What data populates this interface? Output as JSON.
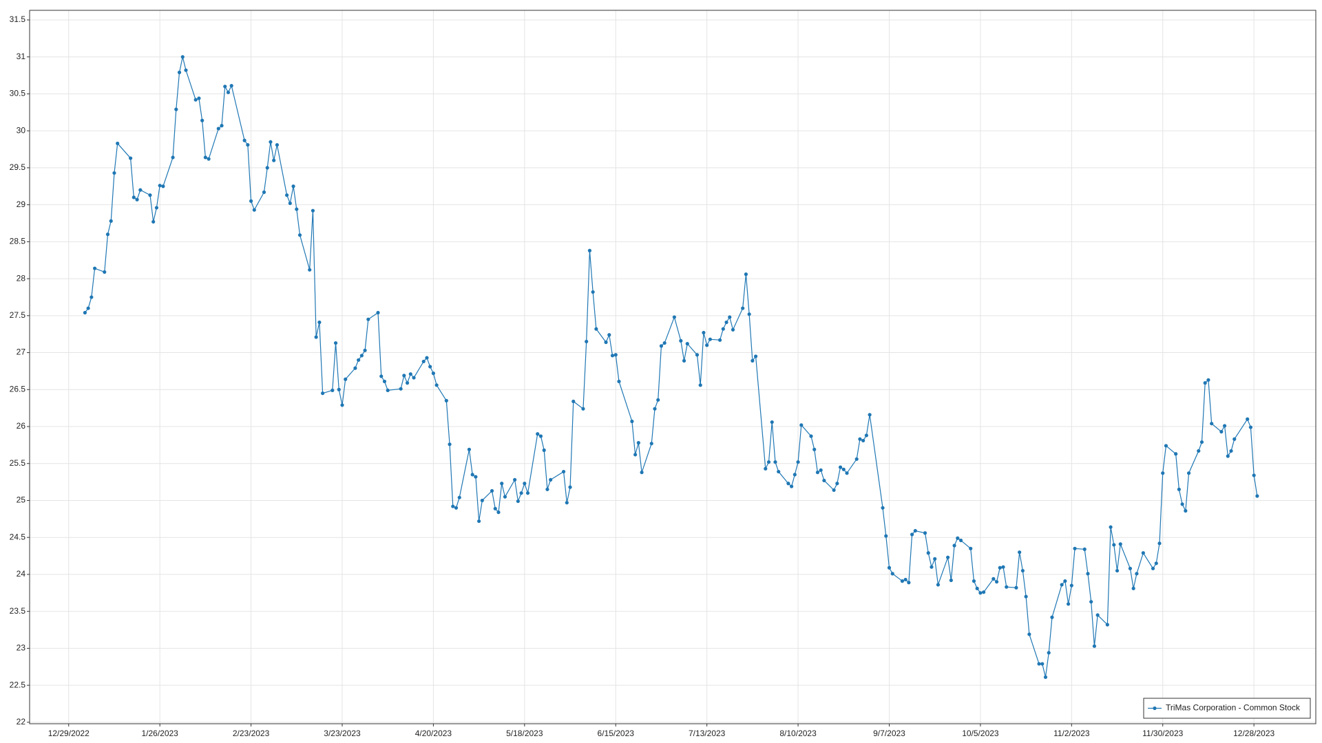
{
  "chart_data": {
    "type": "line",
    "x": [
      "1/3/2023",
      "1/4/2023",
      "1/5/2023",
      "1/6/2023",
      "1/9/2023",
      "1/10/2023",
      "1/11/2023",
      "1/12/2023",
      "1/13/2023",
      "1/17/2023",
      "1/18/2023",
      "1/19/2023",
      "1/20/2023",
      "1/23/2023",
      "1/24/2023",
      "1/25/2023",
      "1/26/2023",
      "1/27/2023",
      "1/30/2023",
      "1/31/2023",
      "2/1/2023",
      "2/2/2023",
      "2/3/2023",
      "2/6/2023",
      "2/7/2023",
      "2/8/2023",
      "2/9/2023",
      "2/10/2023",
      "2/13/2023",
      "2/14/2023",
      "2/15/2023",
      "2/16/2023",
      "2/17/2023",
      "2/21/2023",
      "2/22/2023",
      "2/23/2023",
      "2/24/2023",
      "2/27/2023",
      "2/28/2023",
      "3/1/2023",
      "3/2/2023",
      "3/3/2023",
      "3/6/2023",
      "3/7/2023",
      "3/8/2023",
      "3/9/2023",
      "3/10/2023",
      "3/13/2023",
      "3/14/2023",
      "3/15/2023",
      "3/16/2023",
      "3/17/2023",
      "3/20/2023",
      "3/21/2023",
      "3/22/2023",
      "3/23/2023",
      "3/24/2023",
      "3/27/2023",
      "3/28/2023",
      "3/29/2023",
      "3/30/2023",
      "3/31/2023",
      "4/3/2023",
      "4/4/2023",
      "4/5/2023",
      "4/6/2023",
      "4/10/2023",
      "4/11/2023",
      "4/12/2023",
      "4/13/2023",
      "4/14/2023",
      "4/17/2023",
      "4/18/2023",
      "4/19/2023",
      "4/20/2023",
      "4/21/2023",
      "4/24/2023",
      "4/25/2023",
      "4/26/2023",
      "4/27/2023",
      "4/28/2023",
      "5/1/2023",
      "5/2/2023",
      "5/3/2023",
      "5/4/2023",
      "5/5/2023",
      "5/8/2023",
      "5/9/2023",
      "5/10/2023",
      "5/11/2023",
      "5/12/2023",
      "5/15/2023",
      "5/16/2023",
      "5/17/2023",
      "5/18/2023",
      "5/19/2023",
      "5/22/2023",
      "5/23/2023",
      "5/24/2023",
      "5/25/2023",
      "5/26/2023",
      "5/30/2023",
      "5/31/2023",
      "6/1/2023",
      "6/2/2023",
      "6/5/2023",
      "6/6/2023",
      "6/7/2023",
      "6/8/2023",
      "6/9/2023",
      "6/12/2023",
      "6/13/2023",
      "6/14/2023",
      "6/15/2023",
      "6/16/2023",
      "6/20/2023",
      "6/21/2023",
      "6/22/2023",
      "6/23/2023",
      "6/26/2023",
      "6/27/2023",
      "6/28/2023",
      "6/29/2023",
      "6/30/2023",
      "7/3/2023",
      "7/5/2023",
      "7/6/2023",
      "7/7/2023",
      "7/10/2023",
      "7/11/2023",
      "7/12/2023",
      "7/13/2023",
      "7/14/2023",
      "7/17/2023",
      "7/18/2023",
      "7/19/2023",
      "7/20/2023",
      "7/21/2023",
      "7/24/2023",
      "7/25/2023",
      "7/26/2023",
      "7/27/2023",
      "7/28/2023",
      "7/31/2023",
      "8/1/2023",
      "8/2/2023",
      "8/3/2023",
      "8/4/2023",
      "8/7/2023",
      "8/8/2023",
      "8/9/2023",
      "8/10/2023",
      "8/11/2023",
      "8/14/2023",
      "8/15/2023",
      "8/16/2023",
      "8/17/2023",
      "8/18/2023",
      "8/21/2023",
      "8/22/2023",
      "8/23/2023",
      "8/24/2023",
      "8/25/2023",
      "8/28/2023",
      "8/29/2023",
      "8/30/2023",
      "8/31/2023",
      "9/1/2023",
      "9/5/2023",
      "9/6/2023",
      "9/7/2023",
      "9/8/2023",
      "9/11/2023",
      "9/12/2023",
      "9/13/2023",
      "9/14/2023",
      "9/15/2023",
      "9/18/2023",
      "9/19/2023",
      "9/20/2023",
      "9/21/2023",
      "9/22/2023",
      "9/25/2023",
      "9/26/2023",
      "9/27/2023",
      "9/28/2023",
      "9/29/2023",
      "10/2/2023",
      "10/3/2023",
      "10/4/2023",
      "10/5/2023",
      "10/6/2023",
      "10/9/2023",
      "10/10/2023",
      "10/11/2023",
      "10/12/2023",
      "10/13/2023",
      "10/16/2023",
      "10/17/2023",
      "10/18/2023",
      "10/19/2023",
      "10/20/2023",
      "10/23/2023",
      "10/24/2023",
      "10/25/2023",
      "10/26/2023",
      "10/27/2023",
      "10/30/2023",
      "10/31/2023",
      "11/1/2023",
      "11/2/2023",
      "11/3/2023",
      "11/6/2023",
      "11/7/2023",
      "11/8/2023",
      "11/9/2023",
      "11/10/2023",
      "11/13/2023",
      "11/14/2023",
      "11/15/2023",
      "11/16/2023",
      "11/17/2023",
      "11/20/2023",
      "11/21/2023",
      "11/22/2023",
      "11/24/2023",
      "11/27/2023",
      "11/28/2023",
      "11/29/2023",
      "11/30/2023",
      "12/1/2023",
      "12/4/2023",
      "12/5/2023",
      "12/6/2023",
      "12/7/2023",
      "12/8/2023",
      "12/11/2023",
      "12/12/2023",
      "12/13/2023",
      "12/14/2023",
      "12/15/2023",
      "12/18/2023",
      "12/19/2023",
      "12/20/2023",
      "12/21/2023",
      "12/22/2023",
      "12/26/2023",
      "12/27/2023",
      "12/28/2023",
      "12/29/2023"
    ],
    "series": [
      {
        "name": "TriMas Corporation - Common Stock",
        "color": "#1f77b4",
        "values": [
          27.54,
          27.6,
          27.75,
          28.14,
          28.09,
          28.6,
          28.78,
          29.43,
          29.83,
          29.63,
          29.1,
          29.07,
          29.2,
          29.13,
          28.77,
          28.96,
          29.26,
          29.25,
          29.64,
          30.29,
          30.79,
          31.0,
          30.82,
          30.42,
          30.44,
          30.14,
          29.64,
          29.62,
          30.03,
          30.07,
          30.6,
          30.52,
          30.61,
          29.87,
          29.81,
          29.05,
          28.93,
          29.17,
          29.5,
          29.85,
          29.6,
          29.81,
          29.13,
          29.02,
          29.25,
          28.94,
          28.59,
          28.12,
          28.92,
          27.21,
          27.41,
          26.45,
          26.49,
          27.13,
          26.5,
          26.29,
          26.64,
          26.79,
          26.9,
          26.96,
          27.03,
          27.45,
          27.54,
          26.68,
          26.61,
          26.49,
          26.51,
          26.69,
          26.59,
          26.71,
          26.66,
          26.88,
          26.93,
          26.81,
          26.72,
          26.56,
          26.35,
          25.76,
          24.92,
          24.9,
          25.04,
          25.69,
          25.35,
          25.32,
          24.72,
          25.0,
          25.13,
          24.89,
          24.84,
          25.23,
          25.05,
          25.28,
          24.99,
          25.1,
          25.23,
          25.1,
          25.9,
          25.87,
          25.68,
          25.15,
          25.28,
          25.39,
          24.97,
          25.18,
          26.34,
          26.24,
          27.15,
          28.38,
          27.82,
          27.32,
          27.14,
          27.24,
          26.96,
          26.97,
          26.61,
          26.07,
          25.62,
          25.78,
          25.38,
          25.77,
          26.24,
          26.36,
          27.09,
          27.13,
          27.48,
          27.16,
          26.89,
          27.12,
          26.97,
          26.56,
          27.27,
          27.1,
          27.18,
          27.17,
          27.32,
          27.41,
          27.48,
          27.31,
          27.6,
          28.06,
          27.52,
          26.89,
          26.95,
          25.43,
          25.52,
          26.06,
          25.52,
          25.39,
          25.23,
          25.19,
          25.35,
          25.52,
          26.02,
          25.87,
          25.69,
          25.38,
          25.41,
          25.27,
          25.14,
          25.23,
          25.45,
          25.42,
          25.37,
          25.56,
          25.83,
          25.81,
          25.88,
          26.16,
          24.9,
          24.52,
          24.09,
          24.01,
          23.91,
          23.93,
          23.89,
          24.54,
          24.59,
          24.56,
          24.29,
          24.1,
          24.21,
          23.86,
          24.23,
          23.92,
          24.39,
          24.49,
          24.46,
          24.35,
          23.91,
          23.81,
          23.75,
          23.76,
          23.94,
          23.9,
          24.09,
          24.1,
          23.83,
          23.82,
          24.3,
          24.05,
          23.7,
          23.19,
          22.79,
          22.79,
          22.61,
          22.94,
          23.42,
          23.86,
          23.91,
          23.6,
          23.85,
          24.35,
          24.34,
          24.01,
          23.63,
          23.03,
          23.45,
          23.32,
          24.64,
          24.4,
          24.05,
          24.41,
          24.08,
          23.81,
          24.01,
          24.29,
          24.08,
          24.15,
          24.42,
          25.37,
          25.74,
          25.63,
          25.15,
          24.95,
          24.86,
          25.37,
          25.67,
          25.79,
          26.59,
          26.63,
          26.04,
          25.93,
          26.01,
          25.6,
          25.67,
          25.83,
          26.1,
          25.99,
          25.34,
          25.06
        ]
      }
    ],
    "xlim": [
      "12/17/2022",
      "1/16/2024"
    ],
    "xticks": [
      "12/29/2022",
      "1/26/2023",
      "2/23/2023",
      "3/23/2023",
      "4/20/2023",
      "5/18/2023",
      "6/15/2023",
      "7/13/2023",
      "8/10/2023",
      "9/7/2023",
      "10/5/2023",
      "11/2/2023",
      "11/30/2023",
      "12/28/2023"
    ],
    "ylim": [
      21.98,
      31.63
    ],
    "yticks": [
      22,
      22.5,
      23,
      23.5,
      24,
      24.5,
      25,
      25.5,
      26,
      26.5,
      27,
      27.5,
      28,
      28.5,
      29,
      29.5,
      30,
      30.5,
      31,
      31.5
    ],
    "grid": true,
    "legend": "lower right"
  }
}
